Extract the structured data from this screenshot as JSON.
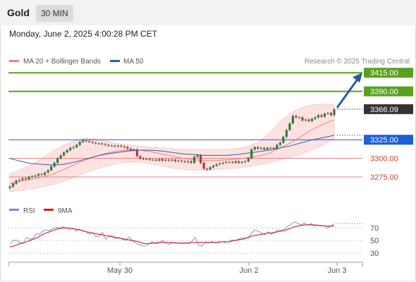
{
  "header": {
    "instrument": "Gold",
    "timeframe": "30 MIN",
    "timestamp": "Monday, June 2, 2025 4:00:28 PM CET"
  },
  "colors": {
    "ma20": "#e9837f",
    "bands_fill": "#fde2e2",
    "ma50": "#2f5fa6",
    "resistance": "#5aa020",
    "support_pivot": "#1a5fd6",
    "support": "#e57f7f",
    "candle_up": "#2e7d32",
    "candle_down": "#b23a3a",
    "rsi": "#6f8fd8",
    "rsi9ma": "#d42020",
    "arrow": "#2c5aa0"
  },
  "chart_data": [
    {
      "type": "candlestick",
      "title": "",
      "legend": [
        {
          "name": "MA 20 + Bollinger Bands",
          "color": "#e9837f"
        },
        {
          "name": "MA 50",
          "color": "#2f5fa6"
        }
      ],
      "credit": "Research © 2025 Trading Central",
      "y_range": [
        3257,
        3437
      ],
      "x_ticks": [
        "May 30",
        "Jun 2",
        "Jun 3"
      ],
      "levels": [
        {
          "label": "3415.00",
          "value": 3415.0,
          "kind": "resistance"
        },
        {
          "label": "3390.00",
          "value": 3390.0,
          "kind": "resistance"
        },
        {
          "label": "3366.09",
          "value": 3366.09,
          "kind": "last_price"
        },
        {
          "label": "3325.00",
          "value": 3325.0,
          "kind": "pivot"
        },
        {
          "label": "3300.00",
          "value": 3300.0,
          "kind": "support"
        },
        {
          "label": "3275.00",
          "value": 3275.0,
          "kind": "support"
        }
      ],
      "forecast_arrow": {
        "from": 3366.09,
        "to": 3415.0
      },
      "closes": [
        3262,
        3266,
        3270,
        3271,
        3273,
        3272,
        3275,
        3276,
        3277,
        3279,
        3278,
        3281,
        3284,
        3289,
        3294,
        3300,
        3304,
        3308,
        3311,
        3314,
        3315,
        3318,
        3322,
        3324,
        3323,
        3322,
        3321,
        3320,
        3320,
        3319,
        3318,
        3317,
        3317,
        3316,
        3317,
        3316,
        3315,
        3313,
        3311,
        3312,
        3303,
        3300,
        3299,
        3299,
        3298,
        3298,
        3297,
        3299,
        3297,
        3298,
        3297,
        3298,
        3296,
        3297,
        3296,
        3295,
        3296,
        3294,
        3302,
        3304,
        3294,
        3286,
        3285,
        3288,
        3290,
        3292,
        3293,
        3294,
        3295,
        3295,
        3294,
        3296,
        3294,
        3295,
        3296,
        3300,
        3312,
        3315,
        3313,
        3314,
        3312,
        3314,
        3314,
        3313,
        3318,
        3321,
        3329,
        3338,
        3347,
        3357,
        3355,
        3355,
        3351,
        3352,
        3350,
        3353,
        3355,
        3358,
        3356,
        3360,
        3361,
        3358,
        3366
      ],
      "series": [
        {
          "name": "MA 20",
          "values": [
            3266,
            3269,
            3272,
            3275,
            3279,
            3285,
            3292,
            3298,
            3303,
            3307,
            3310,
            3311,
            3311,
            3309,
            3306,
            3303,
            3300,
            3298,
            3297,
            3297,
            3298,
            3299,
            3301,
            3303,
            3307,
            3314,
            3321,
            3330,
            3339,
            3346,
            3352
          ]
        },
        {
          "name": "MA 50",
          "values": [
            3300,
            3296,
            3293,
            3292,
            3291,
            3292,
            3295,
            3299,
            3303,
            3306,
            3308,
            3310,
            3311,
            3311,
            3310,
            3308,
            3306,
            3305,
            3304,
            3304,
            3304,
            3305,
            3307,
            3309,
            3311,
            3314,
            3317,
            3321,
            3325,
            3328,
            3331
          ]
        },
        {
          "name": "Bollinger Upper",
          "values": [
            3279,
            3285,
            3292,
            3300,
            3310,
            3318,
            3324,
            3327,
            3326,
            3323,
            3320,
            3318,
            3316,
            3315,
            3314,
            3313,
            3312,
            3312,
            3312,
            3312,
            3312,
            3313,
            3316,
            3322,
            3334,
            3349,
            3361,
            3368,
            3372,
            3373,
            3372
          ]
        },
        {
          "name": "Bollinger Lower",
          "values": [
            3255,
            3257,
            3259,
            3262,
            3265,
            3269,
            3275,
            3281,
            3286,
            3290,
            3293,
            3295,
            3295,
            3293,
            3290,
            3287,
            3285,
            3284,
            3284,
            3285,
            3286,
            3287,
            3289,
            3291,
            3294,
            3298,
            3302,
            3306,
            3312,
            3318,
            3326
          ]
        }
      ]
    },
    {
      "type": "line",
      "title": "",
      "legend": [
        {
          "name": "RSI",
          "color": "#6f8fd8"
        },
        {
          "name": "9MA",
          "color": "#d42020"
        }
      ],
      "y_range": [
        20,
        85
      ],
      "y_ticks": [
        70,
        50,
        30
      ],
      "series": [
        {
          "name": "RSI",
          "values": [
            45,
            50,
            51,
            47,
            46,
            55,
            52,
            54,
            61,
            60,
            65,
            67,
            66,
            69,
            71,
            70,
            72,
            70,
            67,
            70,
            65,
            68,
            65,
            64,
            60,
            63,
            56,
            57,
            63,
            52,
            58,
            57,
            53,
            55,
            52,
            50,
            56,
            50,
            46,
            43,
            42,
            41,
            45,
            48,
            45,
            46,
            50,
            47,
            44,
            46,
            47,
            46,
            45,
            47,
            45,
            49,
            55,
            43,
            41,
            48,
            46,
            49,
            46,
            48,
            48,
            47,
            48,
            51,
            50,
            52,
            54,
            55,
            54,
            62,
            67,
            65,
            62,
            59,
            64,
            60,
            63,
            67,
            66,
            68,
            73,
            76,
            80,
            77,
            75,
            78,
            74,
            77,
            73,
            75,
            73,
            74,
            70,
            73,
            77
          ]
        },
        {
          "name": "9MA",
          "values": [
            40,
            41,
            43,
            45,
            46,
            48,
            50,
            52,
            54,
            57,
            60,
            62,
            64,
            66,
            68,
            69,
            70,
            70,
            70,
            69,
            68,
            67,
            66,
            64,
            63,
            62,
            61,
            60,
            59,
            58,
            57,
            56,
            55,
            54,
            53,
            52,
            51,
            50,
            49,
            48,
            46,
            45,
            45,
            46,
            46,
            47,
            47,
            47,
            47,
            47,
            46,
            46,
            46,
            46,
            46,
            47,
            47,
            47,
            47,
            47,
            47,
            47,
            47,
            47,
            48,
            48,
            48,
            49,
            50,
            51,
            52,
            53,
            55,
            57,
            58,
            59,
            60,
            61,
            62,
            62,
            63,
            64,
            65,
            66,
            68,
            70,
            72,
            73,
            74,
            75,
            75,
            75,
            75,
            74,
            74,
            73,
            73,
            73,
            73
          ]
        }
      ]
    }
  ]
}
